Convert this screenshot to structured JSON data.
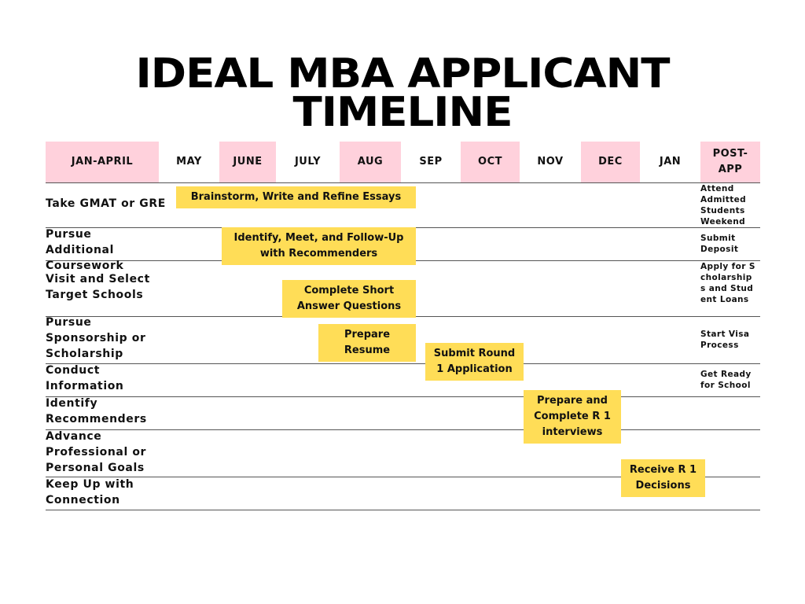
{
  "title": {
    "line1": "IDEAL MBA APPLICANT",
    "line2": "TIMELINE"
  },
  "columns": [
    "JAN-APRIL",
    "MAY",
    "JUNE",
    "JULY",
    "AUG",
    "SEP",
    "OCT",
    "NOV",
    "DEC",
    "JAN",
    "POST-APP"
  ],
  "colors": {
    "header_pink": "#ffd1dc",
    "bar_yellow": "#ffdd57"
  },
  "rows": [
    {
      "label": "Take GMAT or GRE",
      "post_app": "Attend Admitted Students Weekend"
    },
    {
      "label": "Pursue Additional Coursework",
      "post_app": "Submit Deposit"
    },
    {
      "label": "Visit and Select Target Schools",
      "post_app": "Apply for Scholarships and Student Loans"
    },
    {
      "label": "Pursue Sponsorship or Scholarship",
      "post_app": "Start Visa Process"
    },
    {
      "label": "Conduct Information",
      "post_app": "Get Ready for School"
    },
    {
      "label": "Identify Recommenders",
      "post_app": ""
    },
    {
      "label": "Advance Professional or Personal Goals",
      "post_app": ""
    },
    {
      "label": "Keep Up with Connection",
      "post_app": ""
    }
  ],
  "tasks": [
    {
      "label": "Brainstorm, Write and Refine Essays",
      "start": "MAY",
      "end": "AUG"
    },
    {
      "label": "Identify, Meet, and Follow-Up with Recommenders",
      "start": "JUNE",
      "end": "AUG"
    },
    {
      "label": "Complete Short Answer Questions",
      "start": "JULY",
      "end": "AUG"
    },
    {
      "label": "Prepare Resume",
      "start": "JULY",
      "end": "AUG"
    },
    {
      "label": "Submit Round 1 Application",
      "start": "SEP",
      "end": "OCT"
    },
    {
      "label": "Prepare and Complete R 1 interviews",
      "start": "NOV",
      "end": "DEC"
    },
    {
      "label": "Receive R 1 Decisions",
      "start": "DEC",
      "end": "JAN"
    }
  ]
}
